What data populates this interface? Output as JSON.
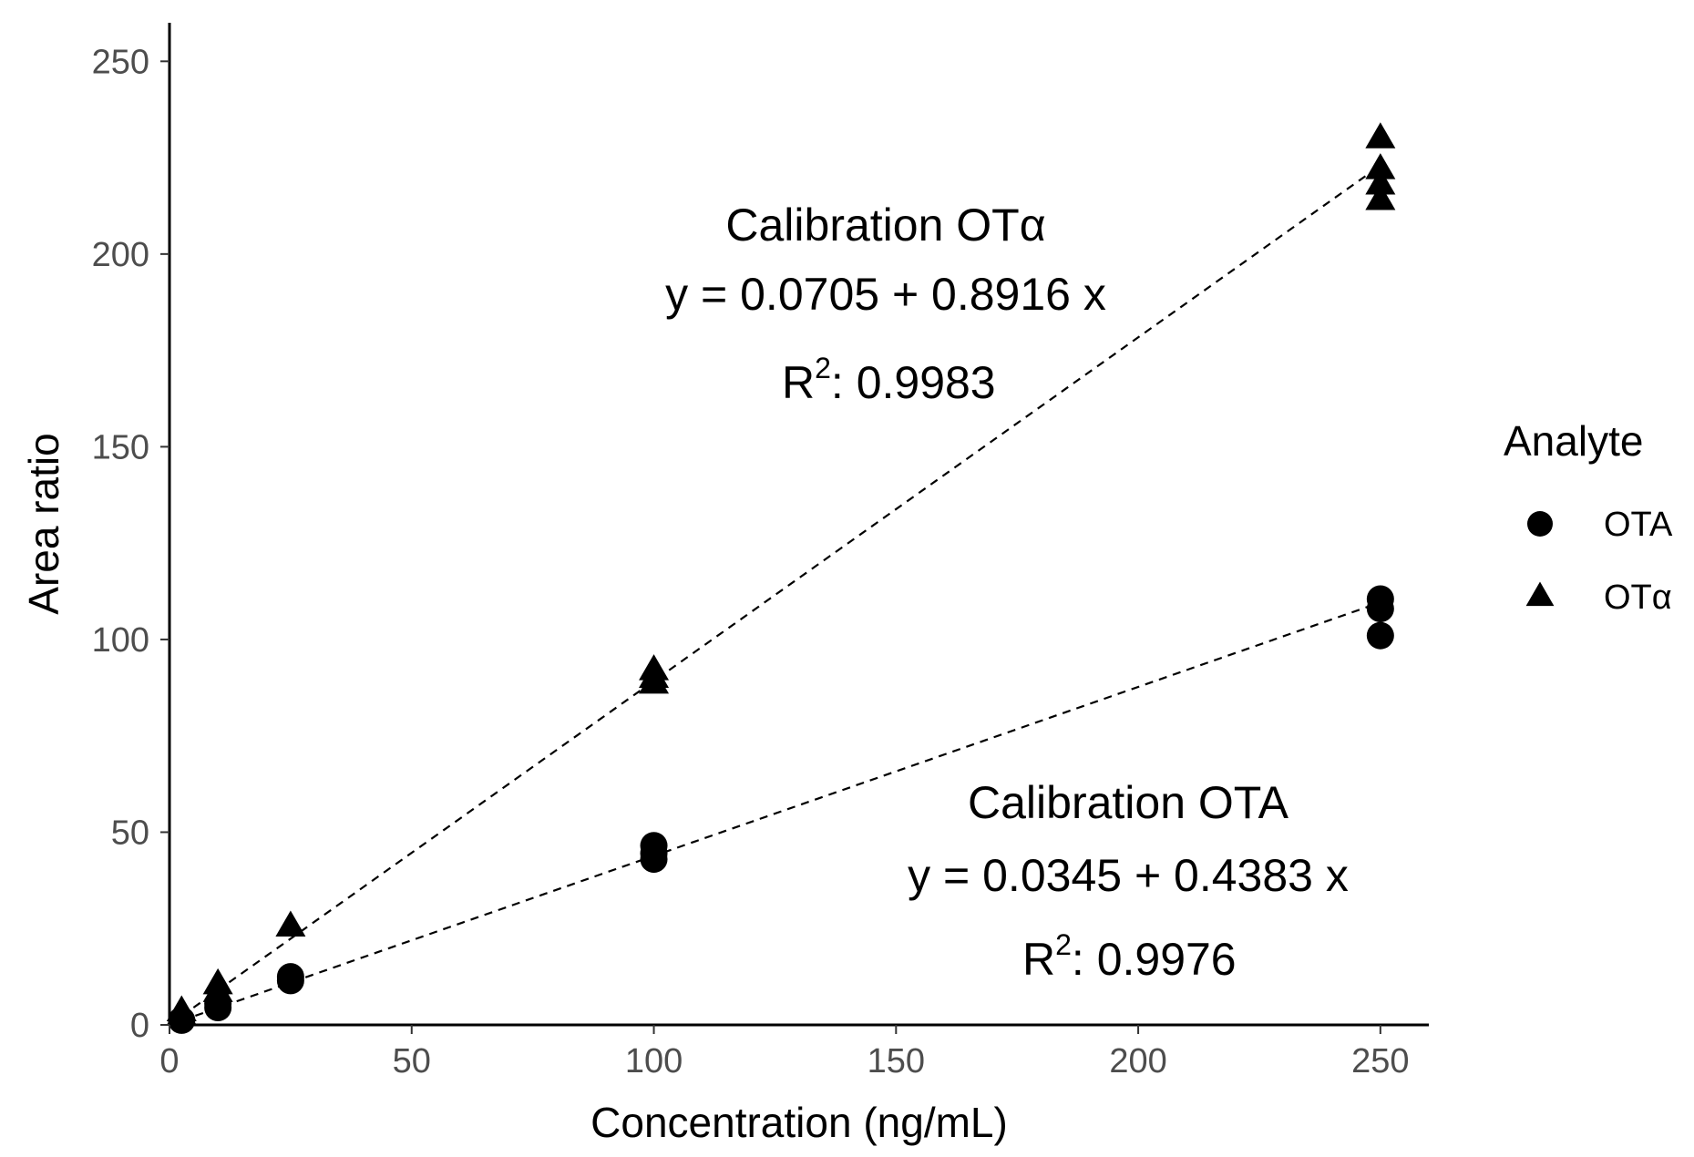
{
  "chart_data": {
    "type": "scatter",
    "xlabel": "Concentration (ng/mL)",
    "ylabel": "Area ratio",
    "xlim": [
      0,
      260
    ],
    "ylim": [
      0,
      260
    ],
    "xticks": [
      0,
      50,
      100,
      150,
      200,
      250
    ],
    "yticks": [
      0,
      50,
      100,
      150,
      200,
      250
    ],
    "grid": false,
    "legend": {
      "title": "Analyte",
      "position": "right",
      "entries": [
        {
          "label": "OTA",
          "marker": "circle"
        },
        {
          "label": "OTα",
          "marker": "triangle"
        }
      ]
    },
    "series": [
      {
        "name": "OTA",
        "marker": "circle",
        "points": [
          [
            2.5,
            1.2
          ],
          [
            10,
            4.5
          ],
          [
            10,
            5.5
          ],
          [
            25,
            11.5
          ],
          [
            25,
            12.5
          ],
          [
            100,
            43
          ],
          [
            100,
            44.5
          ],
          [
            100,
            46.5
          ],
          [
            250,
            101
          ],
          [
            250,
            108
          ],
          [
            250,
            110.5
          ]
        ],
        "fit": {
          "intercept": 0.0345,
          "slope": 0.4383,
          "r2": 0.9976
        }
      },
      {
        "name": "OTα",
        "marker": "triangle",
        "points": [
          [
            2.5,
            2.5
          ],
          [
            2.5,
            3.5
          ],
          [
            10,
            8.5
          ],
          [
            10,
            10.5
          ],
          [
            25,
            25.5
          ],
          [
            100,
            88.5
          ],
          [
            100,
            90
          ],
          [
            100,
            92
          ],
          [
            250,
            214
          ],
          [
            250,
            218
          ],
          [
            250,
            222
          ],
          [
            250,
            230
          ]
        ],
        "fit": {
          "intercept": 0.0705,
          "slope": 0.8916,
          "r2": 0.9983
        }
      }
    ],
    "annotations": {
      "ota_alpha": {
        "title": "Calibration OTα",
        "equation": "y = 0.0705 + 0.8916 x",
        "r2_prefix": "R",
        "r2_exponent": "2",
        "r2_value": ": 0.9983"
      },
      "ota": {
        "title": "Calibration OTA",
        "equation": "y = 0.0345 + 0.4383 x",
        "r2_prefix": "R",
        "r2_exponent": "2",
        "r2_value": ": 0.9976"
      }
    }
  }
}
